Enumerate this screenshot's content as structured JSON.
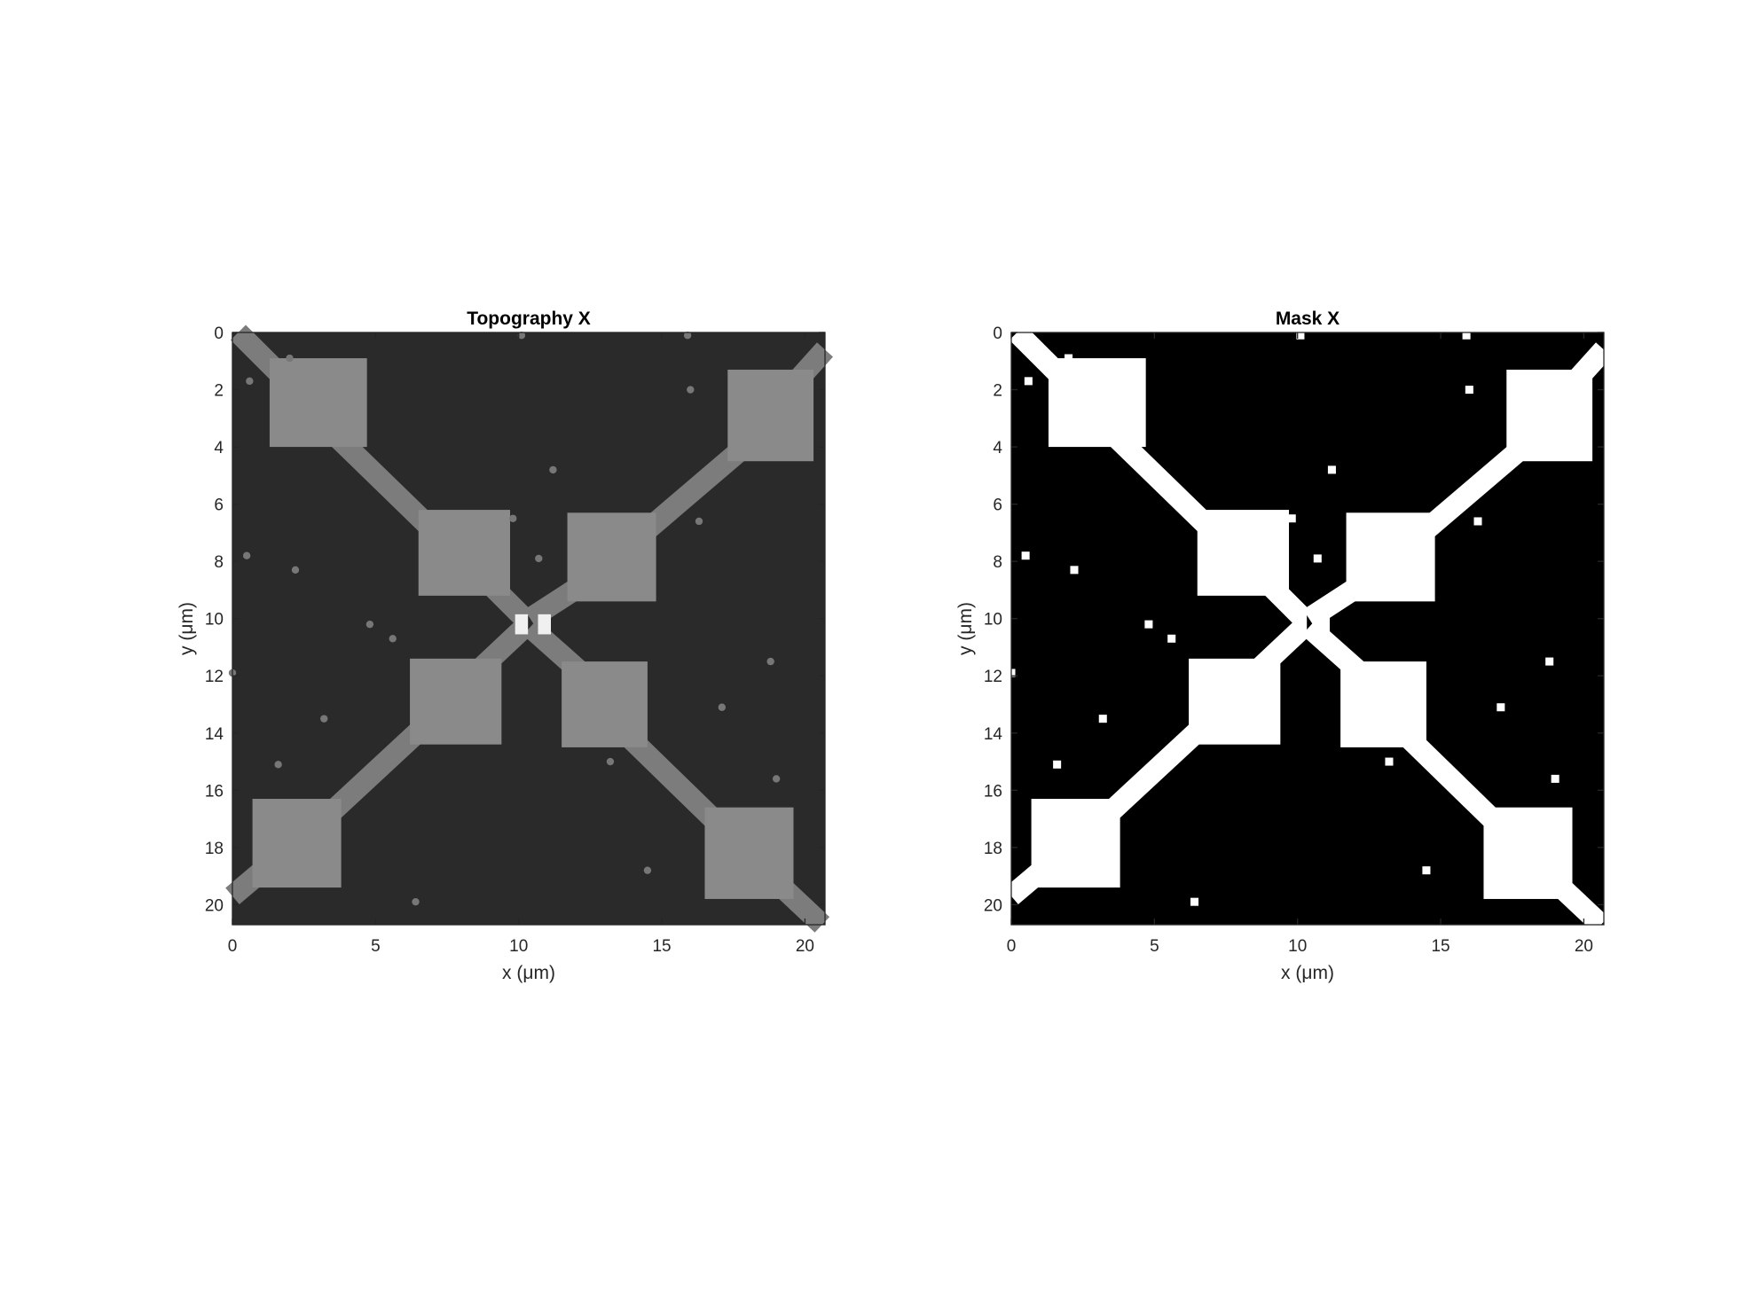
{
  "chart_data": [
    {
      "type": "heatmap",
      "title": "Topography X",
      "xlabel": "x (μm)",
      "ylabel": "y (μm)",
      "xlim": [
        0,
        20.7
      ],
      "ylim": [
        0,
        20.7
      ],
      "y_direction": "reversed",
      "colormap": "gray",
      "x_ticks": [
        0,
        5,
        10,
        15,
        20
      ],
      "y_ticks": [
        0,
        2,
        4,
        6,
        8,
        10,
        12,
        14,
        16,
        18,
        20
      ],
      "colors": {
        "background": "#2a2a2a",
        "pad": "#8a8a8a",
        "lead": "#7c7c7c",
        "bright": "#f0f0f0"
      }
    },
    {
      "type": "heatmap",
      "title": "Mask X",
      "xlabel": "x (μm)",
      "ylabel": "y (μm)",
      "xlim": [
        0,
        20.7
      ],
      "ylim": [
        0,
        20.7
      ],
      "y_direction": "reversed",
      "colormap": "binary",
      "x_ticks": [
        0,
        5,
        10,
        15,
        20
      ],
      "y_ticks": [
        0,
        2,
        4,
        6,
        8,
        10,
        12,
        14,
        16,
        18,
        20
      ],
      "colors": {
        "background": "#000000",
        "pad": "#ffffff",
        "lead": "#ffffff",
        "bright": "#ffffff"
      }
    }
  ],
  "structure": {
    "pads": [
      {
        "x": [
          1.3,
          4.7
        ],
        "y": [
          0.9,
          4.0
        ]
      },
      {
        "x": [
          17.3,
          20.3
        ],
        "y": [
          1.3,
          4.5
        ]
      },
      {
        "x": [
          6.5,
          9.7
        ],
        "y": [
          6.2,
          9.2
        ]
      },
      {
        "x": [
          11.7,
          14.8
        ],
        "y": [
          6.3,
          9.4
        ]
      },
      {
        "x": [
          6.2,
          9.4
        ],
        "y": [
          11.4,
          14.4
        ]
      },
      {
        "x": [
          11.5,
          14.5
        ],
        "y": [
          11.5,
          14.5
        ]
      },
      {
        "x": [
          0.7,
          3.8
        ],
        "y": [
          16.3,
          19.4
        ]
      },
      {
        "x": [
          16.5,
          19.6
        ],
        "y": [
          16.6,
          19.8
        ]
      }
    ],
    "leads": [
      {
        "from": [
          0.2,
          0.0
        ],
        "to": [
          2.0,
          1.8
        ]
      },
      {
        "from": [
          3.6,
          3.6
        ],
        "to": [
          7.3,
          7.2
        ]
      },
      {
        "from": [
          8.9,
          8.7
        ],
        "to": [
          10.2,
          10.0
        ]
      },
      {
        "from": [
          20.7,
          0.6
        ],
        "to": [
          18.9,
          2.6
        ]
      },
      {
        "from": [
          18.0,
          3.9
        ],
        "to": [
          13.9,
          7.4
        ]
      },
      {
        "from": [
          12.4,
          8.7
        ],
        "to": [
          10.4,
          10.0
        ]
      },
      {
        "from": [
          10.2,
          10.3
        ],
        "to": [
          8.5,
          11.9
        ]
      },
      {
        "from": [
          7.3,
          13.2
        ],
        "to": [
          3.1,
          17.1
        ]
      },
      {
        "from": [
          1.3,
          18.6
        ],
        "to": [
          0.0,
          19.7
        ]
      },
      {
        "from": [
          10.4,
          10.3
        ],
        "to": [
          12.2,
          11.9
        ]
      },
      {
        "from": [
          13.3,
          13.6
        ],
        "to": [
          17.2,
          17.4
        ]
      },
      {
        "from": [
          18.9,
          19.1
        ],
        "to": [
          20.6,
          20.7
        ]
      }
    ],
    "bright_spots": [
      {
        "x": 10.1,
        "y": 10.2,
        "w": 0.45,
        "h": 0.7
      },
      {
        "x": 10.9,
        "y": 10.2,
        "w": 0.45,
        "h": 0.7
      }
    ],
    "particles": [
      {
        "x": 0.5,
        "y": 7.8
      },
      {
        "x": 0.6,
        "y": 1.7
      },
      {
        "x": 10.1,
        "y": 0.1
      },
      {
        "x": 15.9,
        "y": 0.1
      },
      {
        "x": 11.2,
        "y": 4.8
      },
      {
        "x": 10.7,
        "y": 7.9
      },
      {
        "x": 5.6,
        "y": 10.7
      },
      {
        "x": 18.8,
        "y": 11.5
      },
      {
        "x": 17.1,
        "y": 13.1
      },
      {
        "x": 1.6,
        "y": 15.1
      },
      {
        "x": 0.0,
        "y": 11.9
      },
      {
        "x": 16.0,
        "y": 2.0
      },
      {
        "x": 2.0,
        "y": 0.9
      },
      {
        "x": 9.8,
        "y": 6.5
      },
      {
        "x": 3.2,
        "y": 13.5
      },
      {
        "x": 13.2,
        "y": 15.0
      },
      {
        "x": 6.4,
        "y": 19.9
      },
      {
        "x": 19.0,
        "y": 15.6
      },
      {
        "x": 4.8,
        "y": 10.2
      },
      {
        "x": 16.3,
        "y": 6.6
      },
      {
        "x": 2.2,
        "y": 8.3
      },
      {
        "x": 14.5,
        "y": 18.8
      }
    ]
  }
}
